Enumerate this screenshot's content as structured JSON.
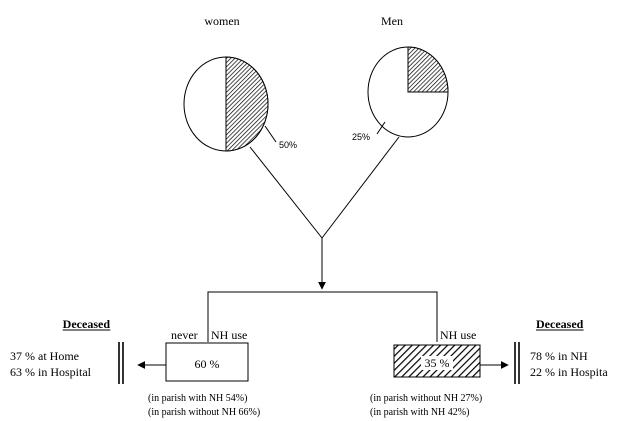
{
  "groups": {
    "women": {
      "label": "women",
      "percent_label": "50%",
      "shaded_fraction": 0.5
    },
    "men": {
      "label": "Men",
      "percent_label": "25%",
      "shaded_fraction": 0.25
    }
  },
  "left_box": {
    "label_never": "never",
    "label_nh_use": "NH use",
    "value": "60 %",
    "notes": [
      "(in parish with NH 54%)",
      "(in parish without NH 66%)"
    ],
    "outcome": {
      "heading": "Deceased",
      "lines": [
        "37 % at Home",
        "63 % in Hospital"
      ]
    }
  },
  "right_box": {
    "label_nh_use": "NH use",
    "value": "35 %",
    "notes": [
      "(in parish without NH 27%)",
      "(in parish with NH  42%)"
    ],
    "outcome": {
      "heading": "Deceased",
      "lines": [
        "78 % in NH",
        "22 % in Hospita"
      ]
    }
  },
  "colors": {
    "line": "#000000",
    "background": "#ffffff",
    "hatch": "#000000"
  }
}
